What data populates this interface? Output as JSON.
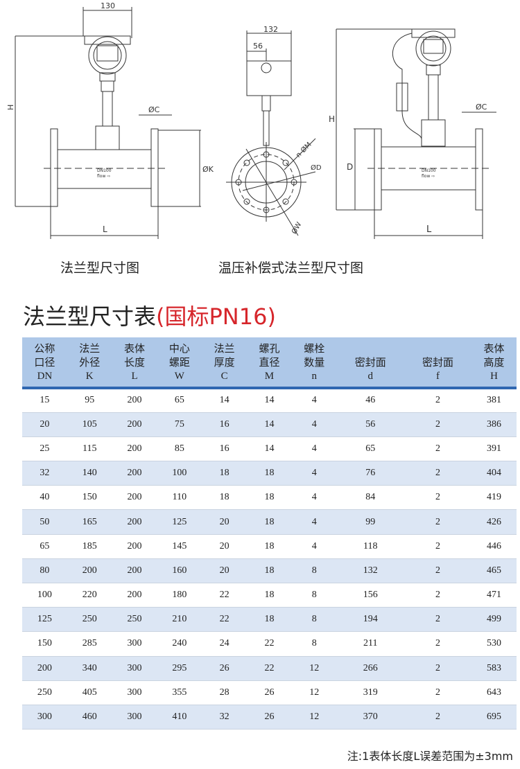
{
  "drawings": {
    "flange": {
      "dim_width": "130",
      "dim_height": "H",
      "dim_c": "ØC",
      "dim_k": "ØK",
      "dim_l": "L",
      "model": "DN100",
      "flow": "flow ⇨",
      "caption": "法兰型尺寸图"
    },
    "side": {
      "dim_width": "132",
      "dim_offset": "56",
      "dim_m": "n-ØM",
      "dim_d": "ØD",
      "dim_w": "ØW"
    },
    "compensated": {
      "dim_height": "H",
      "dim_d": "D",
      "dim_c": "ØC",
      "dim_l": "L",
      "model": "DN100",
      "flow": "flow ⇨",
      "caption": "温压补偿式法兰型尺寸图"
    }
  },
  "title": {
    "main": "法兰型尺寸表",
    "sub": "(国标PN16)"
  },
  "table": {
    "headers": [
      {
        "l1": "公称",
        "l2": "口径",
        "code": "DN"
      },
      {
        "l1": "法兰",
        "l2": "外径",
        "code": "K"
      },
      {
        "l1": "表体",
        "l2": "长度",
        "code": "L"
      },
      {
        "l1": "中心",
        "l2": "螺距",
        "code": "W"
      },
      {
        "l1": "法兰",
        "l2": "厚度",
        "code": "C"
      },
      {
        "l1": "螺孔",
        "l2": "直径",
        "code": "M"
      },
      {
        "l1": "螺栓",
        "l2": "数量",
        "code": "n"
      },
      {
        "l1": "",
        "l2": "密封面",
        "code": "d"
      },
      {
        "l1": "",
        "l2": "密封面",
        "code": "f"
      },
      {
        "l1": "表体",
        "l2": "高度",
        "code": "H"
      }
    ],
    "rows": [
      [
        "15",
        "95",
        "200",
        "65",
        "14",
        "14",
        "4",
        "46",
        "2",
        "381"
      ],
      [
        "20",
        "105",
        "200",
        "75",
        "16",
        "14",
        "4",
        "56",
        "2",
        "386"
      ],
      [
        "25",
        "115",
        "200",
        "85",
        "16",
        "14",
        "4",
        "65",
        "2",
        "391"
      ],
      [
        "32",
        "140",
        "200",
        "100",
        "18",
        "18",
        "4",
        "76",
        "2",
        "404"
      ],
      [
        "40",
        "150",
        "200",
        "110",
        "18",
        "18",
        "4",
        "84",
        "2",
        "419"
      ],
      [
        "50",
        "165",
        "200",
        "125",
        "20",
        "18",
        "4",
        "99",
        "2",
        "426"
      ],
      [
        "65",
        "185",
        "200",
        "145",
        "20",
        "18",
        "4",
        "118",
        "2",
        "446"
      ],
      [
        "80",
        "200",
        "200",
        "160",
        "20",
        "18",
        "8",
        "132",
        "2",
        "465"
      ],
      [
        "100",
        "220",
        "200",
        "180",
        "22",
        "18",
        "8",
        "156",
        "2",
        "471"
      ],
      [
        "125",
        "250",
        "250",
        "210",
        "22",
        "18",
        "8",
        "194",
        "2",
        "499"
      ],
      [
        "150",
        "285",
        "300",
        "240",
        "24",
        "22",
        "8",
        "211",
        "2",
        "530"
      ],
      [
        "200",
        "340",
        "300",
        "295",
        "26",
        "22",
        "12",
        "266",
        "2",
        "583"
      ],
      [
        "250",
        "405",
        "300",
        "355",
        "28",
        "26",
        "12",
        "319",
        "2",
        "643"
      ],
      [
        "300",
        "460",
        "300",
        "410",
        "32",
        "26",
        "12",
        "370",
        "2",
        "695"
      ]
    ]
  },
  "note": "注:1表体长度L误差范围为±3mm",
  "colors": {
    "header_bg": "#aec8e8",
    "header_rule": "#2f67b1",
    "stripe": "#dce6f4",
    "accent_red": "#d6262b"
  }
}
